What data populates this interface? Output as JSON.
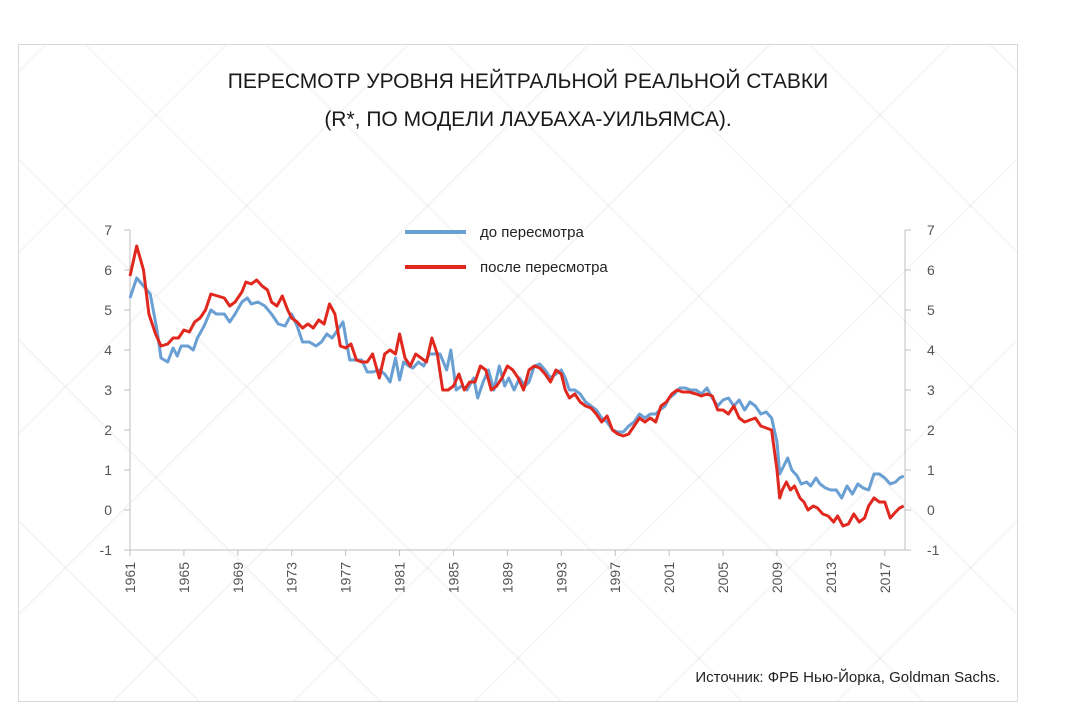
{
  "chart_data": {
    "type": "line",
    "title": [
      "ПЕРЕСМОТР УРОВНЯ НЕЙТРАЛЬНОЙ РЕАЛЬНОЙ СТАВКИ",
      "(R*, ПО МОДЕЛИ ЛАУБАХА-УИЛЬЯМСА)."
    ],
    "source": "Источник: ФРБ Нью-Йорка, Goldman Sachs.",
    "xlim": [
      1961,
      2018.5
    ],
    "ylim": [
      -1,
      7
    ],
    "y_ticks": [
      -1,
      0,
      1,
      2,
      3,
      4,
      5,
      6,
      7
    ],
    "x_ticks": [
      1961,
      1965,
      1969,
      1973,
      1977,
      1981,
      1985,
      1989,
      1993,
      1997,
      2001,
      2005,
      2009,
      2013,
      2017
    ],
    "legend_position": "top-center",
    "series": [
      {
        "name": "до пересмотра",
        "color": "#6a9fd4",
        "points": [
          [
            1961.0,
            5.3
          ],
          [
            1961.5,
            5.8
          ],
          [
            1962.0,
            5.6
          ],
          [
            1962.5,
            5.4
          ],
          [
            1963.0,
            4.5
          ],
          [
            1963.3,
            3.8
          ],
          [
            1963.8,
            3.7
          ],
          [
            1964.2,
            4.05
          ],
          [
            1964.5,
            3.85
          ],
          [
            1964.8,
            4.1
          ],
          [
            1965.3,
            4.1
          ],
          [
            1965.7,
            4.0
          ],
          [
            1966.0,
            4.3
          ],
          [
            1966.5,
            4.6
          ],
          [
            1967.0,
            5.0
          ],
          [
            1967.4,
            4.9
          ],
          [
            1968.0,
            4.9
          ],
          [
            1968.4,
            4.7
          ],
          [
            1968.8,
            4.9
          ],
          [
            1969.3,
            5.2
          ],
          [
            1969.7,
            5.3
          ],
          [
            1970.0,
            5.15
          ],
          [
            1970.5,
            5.2
          ],
          [
            1971.0,
            5.1
          ],
          [
            1971.5,
            4.9
          ],
          [
            1972.0,
            4.65
          ],
          [
            1972.5,
            4.6
          ],
          [
            1973.0,
            4.9
          ],
          [
            1973.4,
            4.6
          ],
          [
            1973.8,
            4.2
          ],
          [
            1974.3,
            4.2
          ],
          [
            1974.8,
            4.1
          ],
          [
            1975.2,
            4.2
          ],
          [
            1975.6,
            4.4
          ],
          [
            1976.0,
            4.3
          ],
          [
            1976.4,
            4.5
          ],
          [
            1976.8,
            4.7
          ],
          [
            1977.3,
            3.75
          ],
          [
            1977.8,
            3.75
          ],
          [
            1978.2,
            3.75
          ],
          [
            1978.6,
            3.45
          ],
          [
            1979.0,
            3.45
          ],
          [
            1979.5,
            3.5
          ],
          [
            1979.9,
            3.4
          ],
          [
            1980.3,
            3.2
          ],
          [
            1980.7,
            3.8
          ],
          [
            1981.0,
            3.25
          ],
          [
            1981.3,
            3.7
          ],
          [
            1981.7,
            3.6
          ],
          [
            1982.0,
            3.55
          ],
          [
            1982.4,
            3.7
          ],
          [
            1982.8,
            3.6
          ],
          [
            1983.2,
            3.9
          ],
          [
            1983.6,
            3.9
          ],
          [
            1984.0,
            3.9
          ],
          [
            1984.5,
            3.5
          ],
          [
            1984.8,
            4.0
          ],
          [
            1985.2,
            3.0
          ],
          [
            1985.6,
            3.1
          ],
          [
            1986.0,
            3.0
          ],
          [
            1986.5,
            3.3
          ],
          [
            1986.8,
            2.8
          ],
          [
            1987.2,
            3.2
          ],
          [
            1987.6,
            3.5
          ],
          [
            1988.0,
            3.0
          ],
          [
            1988.4,
            3.6
          ],
          [
            1988.8,
            3.1
          ],
          [
            1989.1,
            3.3
          ],
          [
            1989.5,
            3.0
          ],
          [
            1989.9,
            3.3
          ],
          [
            1990.3,
            3.1
          ],
          [
            1990.6,
            3.2
          ],
          [
            1991.0,
            3.6
          ],
          [
            1991.4,
            3.65
          ],
          [
            1991.8,
            3.5
          ],
          [
            1992.2,
            3.3
          ],
          [
            1992.6,
            3.4
          ],
          [
            1993.0,
            3.5
          ],
          [
            1993.3,
            3.3
          ],
          [
            1993.6,
            3.0
          ],
          [
            1994.0,
            3.0
          ],
          [
            1994.4,
            2.9
          ],
          [
            1994.8,
            2.7
          ],
          [
            1995.2,
            2.6
          ],
          [
            1995.6,
            2.5
          ],
          [
            1996.0,
            2.3
          ],
          [
            1996.4,
            2.2
          ],
          [
            1996.8,
            2.0
          ],
          [
            1997.2,
            1.95
          ],
          [
            1997.6,
            1.95
          ],
          [
            1998.0,
            2.1
          ],
          [
            1998.4,
            2.2
          ],
          [
            1998.8,
            2.4
          ],
          [
            1999.2,
            2.3
          ],
          [
            1999.6,
            2.4
          ],
          [
            2000.0,
            2.4
          ],
          [
            2000.3,
            2.5
          ],
          [
            2000.7,
            2.6
          ],
          [
            2001.0,
            2.8
          ],
          [
            2001.4,
            2.9
          ],
          [
            2001.8,
            3.05
          ],
          [
            2002.2,
            3.05
          ],
          [
            2002.6,
            3.0
          ],
          [
            2003.0,
            3.0
          ],
          [
            2003.4,
            2.9
          ],
          [
            2003.8,
            3.05
          ],
          [
            2004.2,
            2.8
          ],
          [
            2004.6,
            2.6
          ],
          [
            2005.0,
            2.75
          ],
          [
            2005.4,
            2.8
          ],
          [
            2005.8,
            2.6
          ],
          [
            2006.2,
            2.75
          ],
          [
            2006.6,
            2.5
          ],
          [
            2007.0,
            2.7
          ],
          [
            2007.4,
            2.6
          ],
          [
            2007.8,
            2.4
          ],
          [
            2008.2,
            2.45
          ],
          [
            2008.6,
            2.3
          ],
          [
            2009.0,
            1.7
          ],
          [
            2009.2,
            0.9
          ],
          [
            2009.5,
            1.1
          ],
          [
            2009.8,
            1.3
          ],
          [
            2010.1,
            1.0
          ],
          [
            2010.5,
            0.85
          ],
          [
            2010.8,
            0.65
          ],
          [
            2011.2,
            0.7
          ],
          [
            2011.5,
            0.6
          ],
          [
            2011.9,
            0.8
          ],
          [
            2012.2,
            0.65
          ],
          [
            2012.6,
            0.55
          ],
          [
            2013.0,
            0.5
          ],
          [
            2013.4,
            0.5
          ],
          [
            2013.8,
            0.3
          ],
          [
            2014.2,
            0.6
          ],
          [
            2014.6,
            0.4
          ],
          [
            2015.0,
            0.65
          ],
          [
            2015.4,
            0.55
          ],
          [
            2015.8,
            0.5
          ],
          [
            2016.2,
            0.9
          ],
          [
            2016.6,
            0.9
          ],
          [
            2017.0,
            0.8
          ],
          [
            2017.4,
            0.65
          ],
          [
            2017.8,
            0.7
          ],
          [
            2018.1,
            0.8
          ],
          [
            2018.4,
            0.85
          ]
        ]
      },
      {
        "name": "после пересмотра",
        "color": "#e0281e",
        "points": [
          [
            1961.0,
            5.85
          ],
          [
            1961.5,
            6.6
          ],
          [
            1962.0,
            6.0
          ],
          [
            1962.4,
            4.9
          ],
          [
            1962.9,
            4.4
          ],
          [
            1963.3,
            4.1
          ],
          [
            1963.8,
            4.15
          ],
          [
            1964.2,
            4.3
          ],
          [
            1964.6,
            4.3
          ],
          [
            1965.0,
            4.5
          ],
          [
            1965.4,
            4.45
          ],
          [
            1965.8,
            4.7
          ],
          [
            1966.2,
            4.8
          ],
          [
            1966.6,
            5.0
          ],
          [
            1967.0,
            5.4
          ],
          [
            1967.5,
            5.35
          ],
          [
            1968.0,
            5.3
          ],
          [
            1968.4,
            5.1
          ],
          [
            1968.8,
            5.2
          ],
          [
            1969.3,
            5.45
          ],
          [
            1969.6,
            5.7
          ],
          [
            1970.0,
            5.65
          ],
          [
            1970.4,
            5.75
          ],
          [
            1970.8,
            5.6
          ],
          [
            1971.2,
            5.5
          ],
          [
            1971.5,
            5.2
          ],
          [
            1971.9,
            5.1
          ],
          [
            1972.3,
            5.35
          ],
          [
            1972.7,
            5.0
          ],
          [
            1973.0,
            4.8
          ],
          [
            1973.4,
            4.7
          ],
          [
            1973.8,
            4.55
          ],
          [
            1974.2,
            4.65
          ],
          [
            1974.6,
            4.55
          ],
          [
            1975.0,
            4.75
          ],
          [
            1975.4,
            4.65
          ],
          [
            1975.8,
            5.15
          ],
          [
            1976.2,
            4.9
          ],
          [
            1976.6,
            4.1
          ],
          [
            1977.0,
            4.05
          ],
          [
            1977.4,
            4.15
          ],
          [
            1977.8,
            3.75
          ],
          [
            1978.2,
            3.7
          ],
          [
            1978.6,
            3.7
          ],
          [
            1979.0,
            3.9
          ],
          [
            1979.5,
            3.3
          ],
          [
            1979.9,
            3.9
          ],
          [
            1980.3,
            4.0
          ],
          [
            1980.7,
            3.9
          ],
          [
            1981.0,
            4.4
          ],
          [
            1981.4,
            3.8
          ],
          [
            1981.8,
            3.6
          ],
          [
            1982.2,
            3.9
          ],
          [
            1982.6,
            3.8
          ],
          [
            1983.0,
            3.7
          ],
          [
            1983.4,
            4.3
          ],
          [
            1983.8,
            3.9
          ],
          [
            1984.2,
            3.0
          ],
          [
            1984.6,
            3.0
          ],
          [
            1985.0,
            3.1
          ],
          [
            1985.4,
            3.4
          ],
          [
            1985.8,
            3.0
          ],
          [
            1986.2,
            3.2
          ],
          [
            1986.6,
            3.2
          ],
          [
            1987.0,
            3.6
          ],
          [
            1987.4,
            3.5
          ],
          [
            1987.8,
            3.0
          ],
          [
            1988.2,
            3.1
          ],
          [
            1988.6,
            3.3
          ],
          [
            1989.0,
            3.6
          ],
          [
            1989.4,
            3.5
          ],
          [
            1989.8,
            3.3
          ],
          [
            1990.2,
            3.0
          ],
          [
            1990.6,
            3.5
          ],
          [
            1991.0,
            3.6
          ],
          [
            1991.4,
            3.55
          ],
          [
            1991.8,
            3.4
          ],
          [
            1992.2,
            3.2
          ],
          [
            1992.6,
            3.5
          ],
          [
            1993.0,
            3.4
          ],
          [
            1993.3,
            3.0
          ],
          [
            1993.6,
            2.8
          ],
          [
            1994.0,
            2.9
          ],
          [
            1994.4,
            2.7
          ],
          [
            1994.8,
            2.6
          ],
          [
            1995.2,
            2.55
          ],
          [
            1995.6,
            2.4
          ],
          [
            1996.0,
            2.2
          ],
          [
            1996.4,
            2.35
          ],
          [
            1996.8,
            2.0
          ],
          [
            1997.2,
            1.9
          ],
          [
            1997.6,
            1.85
          ],
          [
            1998.0,
            1.9
          ],
          [
            1998.4,
            2.1
          ],
          [
            1998.8,
            2.3
          ],
          [
            1999.2,
            2.2
          ],
          [
            1999.6,
            2.3
          ],
          [
            2000.0,
            2.2
          ],
          [
            2000.4,
            2.6
          ],
          [
            2000.8,
            2.7
          ],
          [
            2001.2,
            2.9
          ],
          [
            2001.6,
            3.0
          ],
          [
            2002.0,
            2.95
          ],
          [
            2002.5,
            2.95
          ],
          [
            2003.0,
            2.9
          ],
          [
            2003.4,
            2.85
          ],
          [
            2003.8,
            2.9
          ],
          [
            2004.2,
            2.85
          ],
          [
            2004.6,
            2.5
          ],
          [
            2005.0,
            2.5
          ],
          [
            2005.4,
            2.4
          ],
          [
            2005.8,
            2.6
          ],
          [
            2006.2,
            2.3
          ],
          [
            2006.6,
            2.2
          ],
          [
            2007.0,
            2.25
          ],
          [
            2007.4,
            2.3
          ],
          [
            2007.8,
            2.1
          ],
          [
            2008.2,
            2.05
          ],
          [
            2008.6,
            2.0
          ],
          [
            2009.0,
            1.0
          ],
          [
            2009.2,
            0.3
          ],
          [
            2009.4,
            0.5
          ],
          [
            2009.7,
            0.7
          ],
          [
            2010.0,
            0.5
          ],
          [
            2010.3,
            0.6
          ],
          [
            2010.7,
            0.3
          ],
          [
            2011.0,
            0.2
          ],
          [
            2011.3,
            0.0
          ],
          [
            2011.7,
            0.1
          ],
          [
            2012.0,
            0.05
          ],
          [
            2012.4,
            -0.1
          ],
          [
            2012.8,
            -0.15
          ],
          [
            2013.2,
            -0.3
          ],
          [
            2013.5,
            -0.15
          ],
          [
            2013.9,
            -0.4
          ],
          [
            2014.3,
            -0.35
          ],
          [
            2014.7,
            -0.1
          ],
          [
            2015.1,
            -0.3
          ],
          [
            2015.5,
            -0.2
          ],
          [
            2015.8,
            0.1
          ],
          [
            2016.2,
            0.3
          ],
          [
            2016.6,
            0.2
          ],
          [
            2017.0,
            0.2
          ],
          [
            2017.4,
            -0.2
          ],
          [
            2017.8,
            -0.05
          ],
          [
            2018.1,
            0.05
          ],
          [
            2018.4,
            0.1
          ]
        ]
      }
    ]
  }
}
